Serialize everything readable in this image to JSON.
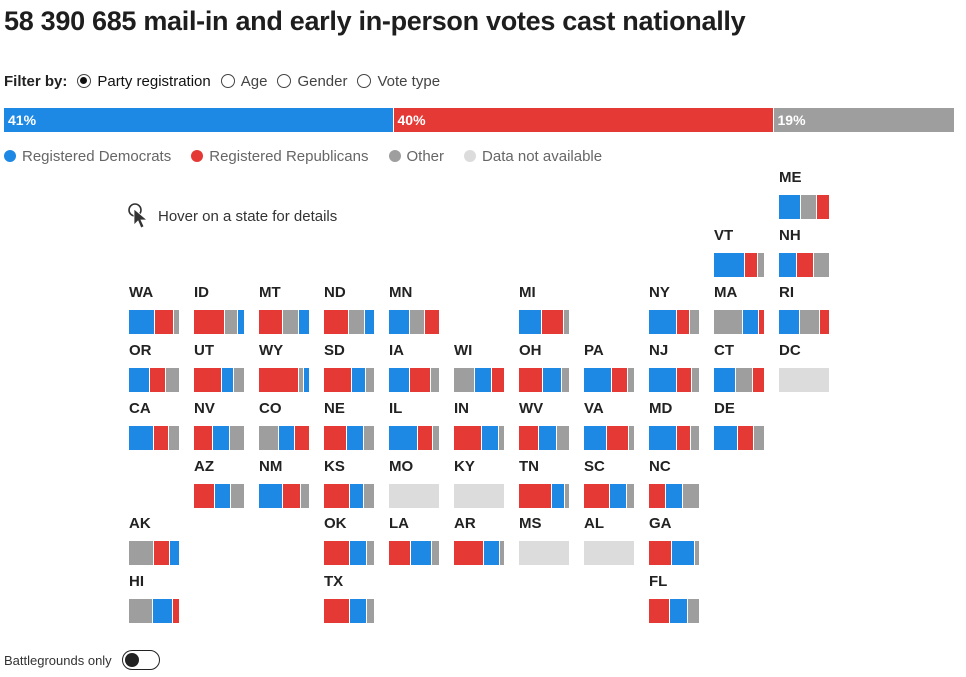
{
  "headline": "58 390 685 mail-in and early in-person votes cast nationally",
  "filter": {
    "label": "Filter by:",
    "options": [
      {
        "label": "Party registration",
        "selected": true
      },
      {
        "label": "Age",
        "selected": false
      },
      {
        "label": "Gender",
        "selected": false
      },
      {
        "label": "Vote type",
        "selected": false
      }
    ]
  },
  "colors": {
    "dem": "#1e88e5",
    "rep": "#e53935",
    "other": "#9e9e9e",
    "na": "#dcdcdc"
  },
  "legend": [
    {
      "key": "dem",
      "label": "Registered Democrats"
    },
    {
      "key": "rep",
      "label": "Registered Republicans"
    },
    {
      "key": "other",
      "label": "Other"
    },
    {
      "key": "na",
      "label": "Data not available"
    }
  ],
  "hover_hint": "Hover on a state for details",
  "battlegrounds_label": "Battlegrounds only",
  "chart_data": {
    "type": "bar",
    "national": [
      {
        "key": "dem",
        "value": 41,
        "label": "41%"
      },
      {
        "key": "rep",
        "value": 40,
        "label": "40%"
      },
      {
        "key": "other",
        "value": 19,
        "label": "19%"
      }
    ],
    "states": [
      {
        "abbr": "ME",
        "col": 10,
        "row": 0,
        "segments": [
          {
            "key": "dem",
            "share": 0.44
          },
          {
            "key": "other",
            "share": 0.31
          },
          {
            "key": "rep",
            "share": 0.25
          }
        ]
      },
      {
        "abbr": "VT",
        "col": 9,
        "row": 1,
        "segments": [
          {
            "key": "dem",
            "share": 0.62
          },
          {
            "key": "rep",
            "share": 0.26
          },
          {
            "key": "other",
            "share": 0.12
          }
        ]
      },
      {
        "abbr": "NH",
        "col": 10,
        "row": 1,
        "segments": [
          {
            "key": "dem",
            "share": 0.36
          },
          {
            "key": "rep",
            "share": 0.34
          },
          {
            "key": "other",
            "share": 0.3
          }
        ]
      },
      {
        "abbr": "WA",
        "col": 0,
        "row": 2,
        "segments": [
          {
            "key": "dem",
            "share": 0.52
          },
          {
            "key": "rep",
            "share": 0.38
          },
          {
            "key": "other",
            "share": 0.1
          }
        ]
      },
      {
        "abbr": "ID",
        "col": 1,
        "row": 2,
        "segments": [
          {
            "key": "rep",
            "share": 0.62
          },
          {
            "key": "other",
            "share": 0.26
          },
          {
            "key": "dem",
            "share": 0.12
          }
        ]
      },
      {
        "abbr": "MT",
        "col": 2,
        "row": 2,
        "segments": [
          {
            "key": "rep",
            "share": 0.48
          },
          {
            "key": "other",
            "share": 0.32
          },
          {
            "key": "dem",
            "share": 0.2
          }
        ]
      },
      {
        "abbr": "ND",
        "col": 3,
        "row": 2,
        "segments": [
          {
            "key": "rep",
            "share": 0.5
          },
          {
            "key": "other",
            "share": 0.32
          },
          {
            "key": "dem",
            "share": 0.18
          }
        ]
      },
      {
        "abbr": "MN",
        "col": 4,
        "row": 2,
        "segments": [
          {
            "key": "dem",
            "share": 0.42
          },
          {
            "key": "other",
            "share": 0.3
          },
          {
            "key": "rep",
            "share": 0.28
          }
        ]
      },
      {
        "abbr": "MI",
        "col": 6,
        "row": 2,
        "segments": [
          {
            "key": "dem",
            "share": 0.46
          },
          {
            "key": "rep",
            "share": 0.44
          },
          {
            "key": "other",
            "share": 0.1
          }
        ]
      },
      {
        "abbr": "NY",
        "col": 8,
        "row": 2,
        "segments": [
          {
            "key": "dem",
            "share": 0.56
          },
          {
            "key": "rep",
            "share": 0.26
          },
          {
            "key": "other",
            "share": 0.18
          }
        ]
      },
      {
        "abbr": "MA",
        "col": 9,
        "row": 2,
        "segments": [
          {
            "key": "other",
            "share": 0.58
          },
          {
            "key": "dem",
            "share": 0.32
          },
          {
            "key": "rep",
            "share": 0.1
          }
        ]
      },
      {
        "abbr": "RI",
        "col": 10,
        "row": 2,
        "segments": [
          {
            "key": "dem",
            "share": 0.42
          },
          {
            "key": "other",
            "share": 0.4
          },
          {
            "key": "rep",
            "share": 0.18
          }
        ]
      },
      {
        "abbr": "OR",
        "col": 0,
        "row": 3,
        "segments": [
          {
            "key": "dem",
            "share": 0.42
          },
          {
            "key": "rep",
            "share": 0.32
          },
          {
            "key": "other",
            "share": 0.26
          }
        ]
      },
      {
        "abbr": "UT",
        "col": 1,
        "row": 3,
        "segments": [
          {
            "key": "rep",
            "share": 0.56
          },
          {
            "key": "dem",
            "share": 0.24
          },
          {
            "key": "other",
            "share": 0.2
          }
        ]
      },
      {
        "abbr": "WY",
        "col": 2,
        "row": 3,
        "segments": [
          {
            "key": "rep",
            "share": 0.8
          },
          {
            "key": "other",
            "share": 0.1
          },
          {
            "key": "dem",
            "share": 0.1
          }
        ]
      },
      {
        "abbr": "SD",
        "col": 3,
        "row": 3,
        "segments": [
          {
            "key": "rep",
            "share": 0.56
          },
          {
            "key": "dem",
            "share": 0.28
          },
          {
            "key": "other",
            "share": 0.16
          }
        ]
      },
      {
        "abbr": "IA",
        "col": 4,
        "row": 3,
        "segments": [
          {
            "key": "dem",
            "share": 0.42
          },
          {
            "key": "rep",
            "share": 0.42
          },
          {
            "key": "other",
            "share": 0.16
          }
        ]
      },
      {
        "abbr": "WI",
        "col": 5,
        "row": 3,
        "segments": [
          {
            "key": "other",
            "share": 0.42
          },
          {
            "key": "dem",
            "share": 0.34
          },
          {
            "key": "rep",
            "share": 0.24
          }
        ]
      },
      {
        "abbr": "OH",
        "col": 6,
        "row": 3,
        "segments": [
          {
            "key": "rep",
            "share": 0.48
          },
          {
            "key": "dem",
            "share": 0.38
          },
          {
            "key": "other",
            "share": 0.14
          }
        ]
      },
      {
        "abbr": "PA",
        "col": 7,
        "row": 3,
        "segments": [
          {
            "key": "dem",
            "share": 0.56
          },
          {
            "key": "rep",
            "share": 0.32
          },
          {
            "key": "other",
            "share": 0.12
          }
        ]
      },
      {
        "abbr": "NJ",
        "col": 8,
        "row": 3,
        "segments": [
          {
            "key": "dem",
            "share": 0.56
          },
          {
            "key": "rep",
            "share": 0.3
          },
          {
            "key": "other",
            "share": 0.14
          }
        ]
      },
      {
        "abbr": "CT",
        "col": 9,
        "row": 3,
        "segments": [
          {
            "key": "dem",
            "share": 0.44
          },
          {
            "key": "other",
            "share": 0.34
          },
          {
            "key": "rep",
            "share": 0.22
          }
        ]
      },
      {
        "abbr": "DC",
        "col": 10,
        "row": 3,
        "segments": [
          {
            "key": "na",
            "share": 1.0
          }
        ]
      },
      {
        "abbr": "CA",
        "col": 0,
        "row": 4,
        "segments": [
          {
            "key": "dem",
            "share": 0.5
          },
          {
            "key": "rep",
            "share": 0.3
          },
          {
            "key": "other",
            "share": 0.2
          }
        ]
      },
      {
        "abbr": "NV",
        "col": 1,
        "row": 4,
        "segments": [
          {
            "key": "rep",
            "share": 0.38
          },
          {
            "key": "dem",
            "share": 0.34
          },
          {
            "key": "other",
            "share": 0.28
          }
        ]
      },
      {
        "abbr": "CO",
        "col": 2,
        "row": 4,
        "segments": [
          {
            "key": "other",
            "share": 0.4
          },
          {
            "key": "dem",
            "share": 0.32
          },
          {
            "key": "rep",
            "share": 0.28
          }
        ]
      },
      {
        "abbr": "NE",
        "col": 3,
        "row": 4,
        "segments": [
          {
            "key": "rep",
            "share": 0.46
          },
          {
            "key": "dem",
            "share": 0.34
          },
          {
            "key": "other",
            "share": 0.2
          }
        ]
      },
      {
        "abbr": "IL",
        "col": 4,
        "row": 4,
        "segments": [
          {
            "key": "dem",
            "share": 0.58
          },
          {
            "key": "rep",
            "share": 0.3
          },
          {
            "key": "other",
            "share": 0.12
          }
        ]
      },
      {
        "abbr": "IN",
        "col": 5,
        "row": 4,
        "segments": [
          {
            "key": "rep",
            "share": 0.56
          },
          {
            "key": "dem",
            "share": 0.34
          },
          {
            "key": "other",
            "share": 0.1
          }
        ]
      },
      {
        "abbr": "WV",
        "col": 6,
        "row": 4,
        "segments": [
          {
            "key": "rep",
            "share": 0.4
          },
          {
            "key": "dem",
            "share": 0.36
          },
          {
            "key": "other",
            "share": 0.24
          }
        ]
      },
      {
        "abbr": "VA",
        "col": 7,
        "row": 4,
        "segments": [
          {
            "key": "dem",
            "share": 0.46
          },
          {
            "key": "rep",
            "share": 0.44
          },
          {
            "key": "other",
            "share": 0.1
          }
        ]
      },
      {
        "abbr": "MD",
        "col": 8,
        "row": 4,
        "segments": [
          {
            "key": "dem",
            "share": 0.56
          },
          {
            "key": "rep",
            "share": 0.28
          },
          {
            "key": "other",
            "share": 0.16
          }
        ]
      },
      {
        "abbr": "DE",
        "col": 9,
        "row": 4,
        "segments": [
          {
            "key": "dem",
            "share": 0.48
          },
          {
            "key": "rep",
            "share": 0.32
          },
          {
            "key": "other",
            "share": 0.2
          }
        ]
      },
      {
        "abbr": "AZ",
        "col": 1,
        "row": 5,
        "segments": [
          {
            "key": "rep",
            "share": 0.42
          },
          {
            "key": "dem",
            "share": 0.32
          },
          {
            "key": "other",
            "share": 0.26
          }
        ]
      },
      {
        "abbr": "NM",
        "col": 2,
        "row": 5,
        "segments": [
          {
            "key": "dem",
            "share": 0.48
          },
          {
            "key": "rep",
            "share": 0.36
          },
          {
            "key": "other",
            "share": 0.16
          }
        ]
      },
      {
        "abbr": "KS",
        "col": 3,
        "row": 5,
        "segments": [
          {
            "key": "rep",
            "share": 0.52
          },
          {
            "key": "dem",
            "share": 0.28
          },
          {
            "key": "other",
            "share": 0.2
          }
        ]
      },
      {
        "abbr": "MO",
        "col": 4,
        "row": 5,
        "segments": [
          {
            "key": "na",
            "share": 1.0
          }
        ]
      },
      {
        "abbr": "KY",
        "col": 5,
        "row": 5,
        "segments": [
          {
            "key": "na",
            "share": 1.0
          }
        ]
      },
      {
        "abbr": "TN",
        "col": 6,
        "row": 5,
        "segments": [
          {
            "key": "rep",
            "share": 0.66
          },
          {
            "key": "dem",
            "share": 0.26
          },
          {
            "key": "other",
            "share": 0.08
          }
        ]
      },
      {
        "abbr": "SC",
        "col": 7,
        "row": 5,
        "segments": [
          {
            "key": "rep",
            "share": 0.52
          },
          {
            "key": "dem",
            "share": 0.34
          },
          {
            "key": "other",
            "share": 0.14
          }
        ]
      },
      {
        "abbr": "NC",
        "col": 8,
        "row": 5,
        "segments": [
          {
            "key": "rep",
            "share": 0.34
          },
          {
            "key": "dem",
            "share": 0.34
          },
          {
            "key": "other",
            "share": 0.32
          }
        ]
      },
      {
        "abbr": "AK",
        "col": 0,
        "row": 6,
        "segments": [
          {
            "key": "other",
            "share": 0.5
          },
          {
            "key": "rep",
            "share": 0.32
          },
          {
            "key": "dem",
            "share": 0.18
          }
        ]
      },
      {
        "abbr": "OK",
        "col": 3,
        "row": 6,
        "segments": [
          {
            "key": "rep",
            "share": 0.52
          },
          {
            "key": "dem",
            "share": 0.34
          },
          {
            "key": "other",
            "share": 0.14
          }
        ]
      },
      {
        "abbr": "LA",
        "col": 4,
        "row": 6,
        "segments": [
          {
            "key": "rep",
            "share": 0.44
          },
          {
            "key": "dem",
            "share": 0.42
          },
          {
            "key": "other",
            "share": 0.14
          }
        ]
      },
      {
        "abbr": "AR",
        "col": 5,
        "row": 6,
        "segments": [
          {
            "key": "rep",
            "share": 0.6
          },
          {
            "key": "dem",
            "share": 0.32
          },
          {
            "key": "other",
            "share": 0.08
          }
        ]
      },
      {
        "abbr": "MS",
        "col": 6,
        "row": 6,
        "segments": [
          {
            "key": "na",
            "share": 1.0
          }
        ]
      },
      {
        "abbr": "AL",
        "col": 7,
        "row": 6,
        "segments": [
          {
            "key": "na",
            "share": 1.0
          }
        ]
      },
      {
        "abbr": "GA",
        "col": 8,
        "row": 6,
        "segments": [
          {
            "key": "rep",
            "share": 0.46
          },
          {
            "key": "dem",
            "share": 0.46
          },
          {
            "key": "other",
            "share": 0.08
          }
        ]
      },
      {
        "abbr": "HI",
        "col": 0,
        "row": 7,
        "segments": [
          {
            "key": "other",
            "share": 0.48
          },
          {
            "key": "dem",
            "share": 0.4
          },
          {
            "key": "rep",
            "share": 0.12
          }
        ]
      },
      {
        "abbr": "TX",
        "col": 3,
        "row": 7,
        "segments": [
          {
            "key": "rep",
            "share": 0.52
          },
          {
            "key": "dem",
            "share": 0.34
          },
          {
            "key": "other",
            "share": 0.14
          }
        ]
      },
      {
        "abbr": "FL",
        "col": 8,
        "row": 7,
        "segments": [
          {
            "key": "rep",
            "share": 0.42
          },
          {
            "key": "dem",
            "share": 0.36
          },
          {
            "key": "other",
            "share": 0.22
          }
        ]
      }
    ]
  }
}
